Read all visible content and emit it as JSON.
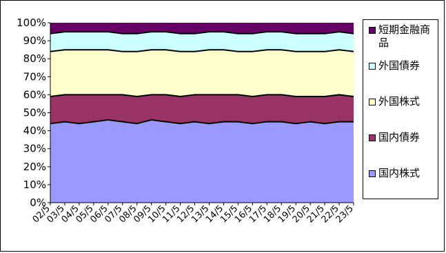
{
  "chart_data": {
    "type": "area",
    "stacked": true,
    "percent": true,
    "x": [
      "02/5",
      "03/5",
      "04/5",
      "05/5",
      "06/5",
      "07/5",
      "08/5",
      "09/5",
      "10/5",
      "11/5",
      "12/5",
      "13/5",
      "14/5",
      "15/5",
      "16/5",
      "17/5",
      "18/5",
      "19/5",
      "20/5",
      "21/5",
      "22/5",
      "23/5"
    ],
    "ylim": [
      0,
      100
    ],
    "yticks": [
      "0%",
      "10%",
      "20%",
      "30%",
      "40%",
      "50%",
      "60%",
      "70%",
      "80%",
      "90%",
      "100%"
    ],
    "grid": false,
    "legend_position": "right",
    "series": [
      {
        "name": "国内株式",
        "color": "#9999ff",
        "values": [
          44,
          45,
          44,
          45,
          46,
          45,
          44,
          46,
          45,
          44,
          45,
          44,
          45,
          45,
          44,
          45,
          45,
          44,
          45,
          44,
          45,
          45
        ]
      },
      {
        "name": "国内債券",
        "color": "#993366",
        "values": [
          15,
          15,
          16,
          15,
          14,
          15,
          15,
          14,
          15,
          15,
          15,
          16,
          15,
          15,
          15,
          15,
          15,
          15,
          14,
          15,
          15,
          14
        ]
      },
      {
        "name": "外国株式",
        "color": "#ffffcc",
        "values": [
          25,
          25,
          25,
          25,
          25,
          24,
          25,
          25,
          25,
          25,
          24,
          25,
          25,
          24,
          25,
          25,
          25,
          25,
          25,
          25,
          25,
          25
        ]
      },
      {
        "name": "外国債券",
        "color": "#ccffff",
        "values": [
          10,
          10,
          10,
          10,
          10,
          10,
          10,
          10,
          10,
          10,
          10,
          10,
          10,
          10,
          10,
          10,
          10,
          10,
          10,
          10,
          10,
          10
        ]
      },
      {
        "name": "短期金融商品",
        "color": "#660066",
        "values": [
          6,
          5,
          5,
          5,
          5,
          6,
          6,
          5,
          5,
          6,
          6,
          5,
          5,
          6,
          6,
          5,
          5,
          6,
          6,
          6,
          5,
          6
        ]
      }
    ]
  }
}
